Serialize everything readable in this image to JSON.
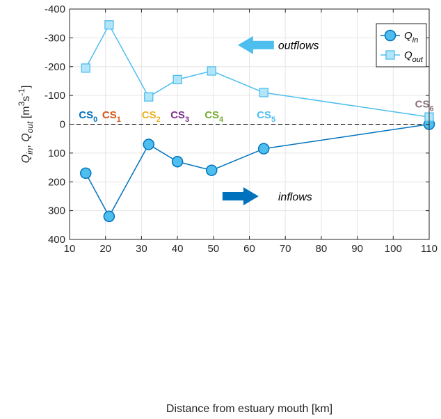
{
  "chart_data": {
    "type": "line",
    "xlabel": "Distance from estuary mouth [km]",
    "ylabel_parts": [
      {
        "t": "Q",
        "it": true
      },
      {
        "t": "in",
        "it": true,
        "sub": true
      },
      {
        "t": ", ",
        "it": false
      },
      {
        "t": "Q",
        "it": true
      },
      {
        "t": "out",
        "it": true,
        "sub": true
      },
      {
        "t": " [m",
        "it": false
      },
      {
        "t": "3",
        "it": false,
        "sup": true
      },
      {
        "t": "s",
        "it": false
      },
      {
        "t": "-1",
        "it": false,
        "sup": true
      },
      {
        "t": "]",
        "it": false
      }
    ],
    "xlim": [
      10,
      110
    ],
    "ylim": [
      -400,
      400
    ],
    "y_reversed": true,
    "grid": true,
    "x_ticks": [
      10,
      20,
      30,
      40,
      50,
      60,
      70,
      80,
      90,
      100,
      110
    ],
    "x_tick_labels": [
      "10",
      "20",
      "30",
      "40",
      "50",
      "60",
      "70",
      "80",
      "90",
      "100",
      "110"
    ],
    "y_ticks": [
      -400,
      -300,
      -200,
      -100,
      0,
      100,
      200,
      300,
      400
    ],
    "y_tick_labels": [
      "-400",
      "-300",
      "-200",
      "-100",
      "0",
      "100",
      "200",
      "300",
      "400"
    ],
    "zero_line": {
      "y": 0,
      "style": "dashed",
      "color": "#000000"
    },
    "series": [
      {
        "name_main": "Q",
        "name_sub": "in",
        "marker": "circle",
        "color": "#0072BD",
        "fill": "#4DBEEE",
        "x": [
          14.5,
          21,
          32,
          40,
          49.5,
          64,
          110
        ],
        "y": [
          170,
          320,
          70,
          130,
          160,
          85,
          0
        ]
      },
      {
        "name_main": "Q",
        "name_sub": "out",
        "marker": "square",
        "color": "#4DBEEE",
        "fill": "#B3E5F9",
        "x": [
          14.5,
          21,
          32,
          40,
          49.5,
          64,
          110
        ],
        "y": [
          -195,
          -345,
          -95,
          -155,
          -185,
          -110,
          -25
        ]
      }
    ],
    "legend": {
      "placement": "top-right"
    },
    "annotations": [
      {
        "text": "outflows",
        "italic": true,
        "x": 68,
        "y": -275,
        "arrow": "left",
        "arrow_color": "#4DBEEE"
      },
      {
        "text": "inflows",
        "italic": true,
        "x": 68,
        "y": 250,
        "arrow": "right",
        "arrow_color": "#0072BD"
      }
    ],
    "cross_sections": [
      {
        "main": "CS",
        "sub": "0",
        "x": 14.5,
        "y": -20,
        "color": "#0072BD"
      },
      {
        "main": "CS",
        "sub": "1",
        "x": 21,
        "y": -20,
        "color": "#D95319"
      },
      {
        "main": "CS",
        "sub": "2",
        "x": 32,
        "y": -20,
        "color": "#EDB120"
      },
      {
        "main": "CS",
        "sub": "3",
        "x": 40,
        "y": -20,
        "color": "#7E2F8E"
      },
      {
        "main": "CS",
        "sub": "4",
        "x": 49.5,
        "y": -20,
        "color": "#77AC30"
      },
      {
        "main": "CS",
        "sub": "5",
        "x": 64,
        "y": -20,
        "color": "#4DBEEE"
      },
      {
        "main": "CS",
        "sub": "6",
        "x": 108,
        "y": -58,
        "color": "#8C6D7C"
      }
    ]
  }
}
